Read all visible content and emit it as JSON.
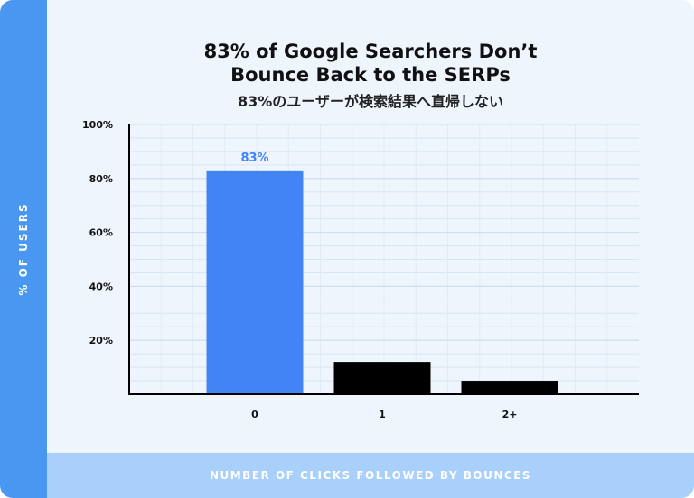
{
  "chart_data": {
    "type": "bar",
    "title_line1": "83% of Google Searchers Don’t",
    "title_line2": "Bounce Back to the SERPs",
    "subtitle": "83%のユーザーが検索結果へ直帰しない",
    "xlabel": "NUMBER OF CLICKS FOLLOWED BY BOUNCES",
    "ylabel": "% OF USERS",
    "categories": [
      "0",
      "1",
      "2+"
    ],
    "values": [
      83,
      12,
      5
    ],
    "data_labels": [
      "83%",
      "",
      ""
    ],
    "ylim": [
      0,
      100
    ],
    "yticks": [
      {
        "value": 20,
        "label": "20%"
      },
      {
        "value": 40,
        "label": "40%"
      },
      {
        "value": 60,
        "label": "60%"
      },
      {
        "value": 80,
        "label": "80%"
      },
      {
        "value": 100,
        "label": "100%"
      }
    ],
    "bar_colors": [
      "#4185f4",
      "#000000",
      "#000000"
    ],
    "label_color": "#4185f4",
    "grid": true
  }
}
